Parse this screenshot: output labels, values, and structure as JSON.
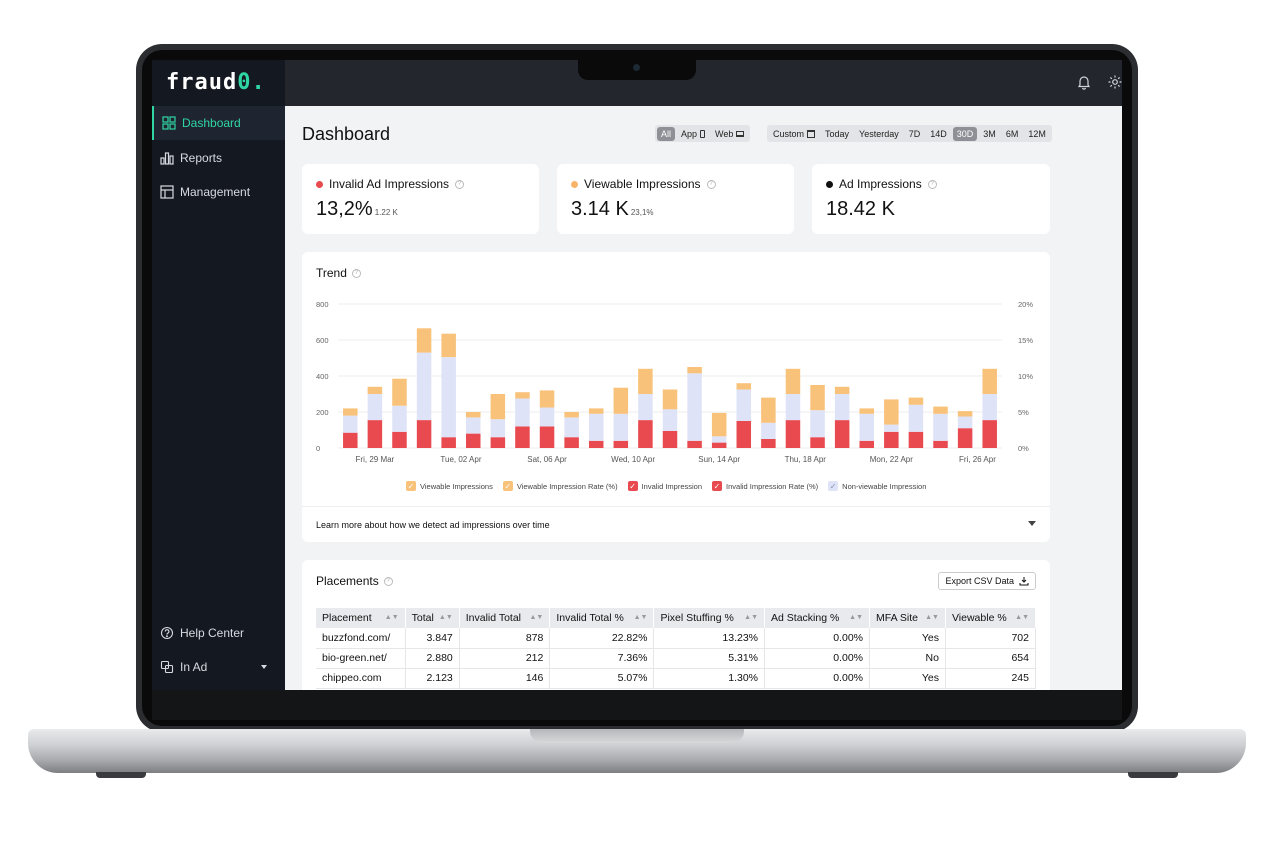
{
  "app": {
    "logo_text": "fraud",
    "logo_accent": "0.",
    "accent_color": "#2fd6a4"
  },
  "sidebar": {
    "items": [
      {
        "label": "Dashboard",
        "icon": "dashboard-grid-icon",
        "active": true
      },
      {
        "label": "Reports",
        "icon": "bar-chart-icon",
        "active": false
      },
      {
        "label": "Management",
        "icon": "layout-icon",
        "active": false
      }
    ],
    "footer": [
      {
        "label": "Help Center",
        "icon": "help-circle-icon"
      },
      {
        "label": "In Ad",
        "icon": "copy-icon"
      }
    ]
  },
  "topbar": {
    "icons": [
      "bell-icon",
      "gear-icon"
    ]
  },
  "page": {
    "title": "Dashboard"
  },
  "filters": {
    "platform": [
      {
        "label": "All",
        "selected": true
      },
      {
        "label": "App",
        "icon": "phone-icon"
      },
      {
        "label": "Web",
        "icon": "monitor-icon"
      }
    ],
    "ranges": [
      {
        "label": "Custom",
        "icon": "calendar-icon"
      },
      {
        "label": "Today"
      },
      {
        "label": "Yesterday"
      },
      {
        "label": "7D"
      },
      {
        "label": "14D"
      },
      {
        "label": "30D",
        "selected": true
      },
      {
        "label": "3M"
      },
      {
        "label": "6M"
      },
      {
        "label": "12M"
      }
    ]
  },
  "kpis": [
    {
      "label": "Invalid Ad Impressions",
      "value": "13,2%",
      "sub": "1.22 K",
      "color": "#e84a4f"
    },
    {
      "label": "Viewable Impressions",
      "value": "3.14 K",
      "sub": "23,1%",
      "color": "#f8b56a"
    },
    {
      "label": "Ad Impressions",
      "value": "18.42 K",
      "sub": "",
      "color": "#111111"
    }
  ],
  "trend": {
    "title": "Trend",
    "learn_more": "Learn more about how we detect ad impressions over time"
  },
  "chart_data": {
    "type": "bar",
    "stacked": true,
    "title": "Trend",
    "y_left": {
      "ticks": [
        "0",
        "200",
        "400",
        "600",
        "800"
      ],
      "ylim": [
        0,
        800
      ]
    },
    "y_right": {
      "ticks": [
        "0%",
        "5%",
        "10%",
        "15%",
        "20%"
      ],
      "ylim": [
        0,
        20
      ]
    },
    "x_tick_labels": [
      "Fri, 29 Mar",
      "Tue, 02 Apr",
      "Sat, 06 Apr",
      "Wed, 10 Apr",
      "Sun, 14 Apr",
      "Thu, 18 Apr",
      "Mon, 22 Apr",
      "Fri, 26 Apr"
    ],
    "grid": true,
    "legend_position": "bottom",
    "legend": [
      {
        "name": "Viewable Impressions",
        "color": "#f8c27a"
      },
      {
        "name": "Viewable Impression Rate (%)",
        "color": "#f8c27a"
      },
      {
        "name": "Invalid Impression",
        "color": "#e84a4f"
      },
      {
        "name": "Invalid Impression Rate  (%)",
        "color": "#e84a4f"
      },
      {
        "name": "Non-viewable Impression",
        "color": "#dfe3f7"
      }
    ],
    "series": [
      {
        "name": "Invalid Impression",
        "color": "#e84a4f",
        "values": [
          85,
          155,
          90,
          155,
          60,
          80,
          60,
          120,
          120,
          60,
          40,
          40,
          155,
          95,
          40,
          30,
          150,
          50,
          155,
          60,
          155,
          40,
          90,
          90,
          40,
          110,
          155
        ]
      },
      {
        "name": "Non-viewable Impression",
        "color": "#dfe3f7",
        "values": [
          95,
          145,
          145,
          375,
          445,
          90,
          100,
          155,
          105,
          110,
          150,
          150,
          145,
          120,
          375,
          35,
          175,
          90,
          145,
          150,
          145,
          150,
          40,
          150,
          150,
          65,
          145
        ]
      },
      {
        "name": "Viewable Impressions",
        "color": "#f8c27a",
        "values": [
          40,
          40,
          150,
          135,
          130,
          30,
          140,
          35,
          95,
          30,
          30,
          145,
          140,
          110,
          35,
          130,
          35,
          140,
          140,
          140,
          40,
          30,
          140,
          40,
          40,
          30,
          140
        ]
      }
    ]
  },
  "placements": {
    "title": "Placements",
    "export_label": "Export CSV Data",
    "columns": [
      "Placement",
      "Total",
      "Invalid Total",
      "Invalid Total %",
      "Pixel Stuffing %",
      "Ad Stacking %",
      "MFA Site",
      "Viewable %"
    ],
    "rows": [
      [
        "buzzfond.com/",
        "3.847",
        "878",
        "22.82%",
        "13.23%",
        "0.00%",
        "Yes",
        "702"
      ],
      [
        "bio-green.net/",
        "2.880",
        "212",
        "7.36%",
        "5.31%",
        "0.00%",
        "No",
        "654"
      ],
      [
        "chippeo.com",
        "2.123",
        "146",
        "5.07%",
        "1.30%",
        "0.00%",
        "Yes",
        "245"
      ]
    ]
  }
}
